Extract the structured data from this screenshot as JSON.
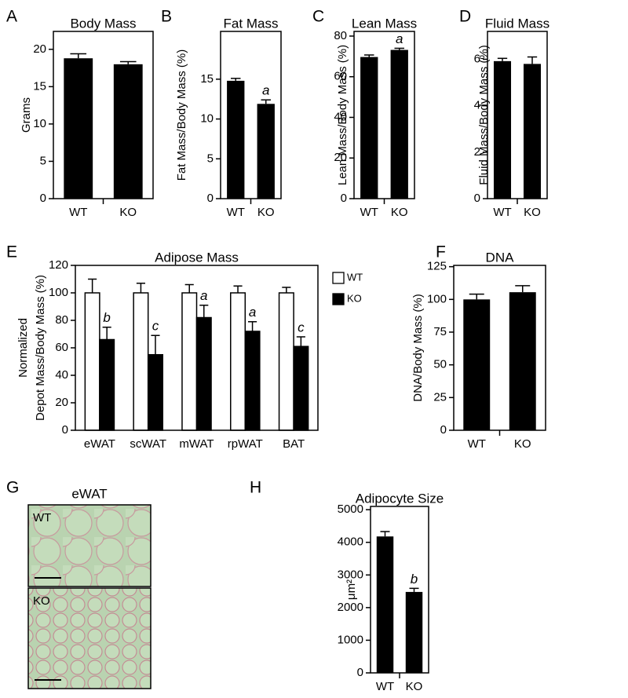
{
  "chart_data": [
    {
      "type": "bar",
      "panel": "A",
      "title": "Body Mass",
      "y_label": "Grams",
      "categories": [
        "WT",
        "KO"
      ],
      "values": [
        18.8,
        18.0
      ],
      "errors": [
        0.6,
        0.35
      ],
      "value_annotations": [
        null,
        null
      ],
      "color": "#000000",
      "ylim": [
        0,
        22.4
      ],
      "yticks": [
        0,
        5,
        10,
        15,
        20
      ]
    },
    {
      "type": "bar",
      "panel": "B",
      "title": "Fat Mass",
      "y_label": "Fat Mass/Body Mass (%)",
      "categories": [
        "WT",
        "KO"
      ],
      "values": [
        14.8,
        11.9
      ],
      "errors": [
        0.3,
        0.5
      ],
      "value_annotations": [
        null,
        "a"
      ],
      "color": "#000000",
      "ylim": [
        0,
        21
      ],
      "yticks": [
        0,
        5,
        10,
        15
      ]
    },
    {
      "type": "bar",
      "panel": "C",
      "title": "Lean Mass",
      "y_label": "Lean Mass/Body Mass (%)",
      "categories": [
        "WT",
        "KO"
      ],
      "values": [
        69.7,
        73.2
      ],
      "errors": [
        1.0,
        0.8
      ],
      "value_annotations": [
        null,
        "a"
      ],
      "color": "#000000",
      "ylim": [
        0,
        82.3
      ],
      "yticks": [
        0,
        20,
        40,
        60,
        80
      ]
    },
    {
      "type": "bar",
      "panel": "D",
      "title": "Fluid Mass",
      "y_label": "Fluid Mass/Body Mass (%)",
      "categories": [
        "WT",
        "KO"
      ],
      "values": [
        5.92,
        5.8
      ],
      "errors": [
        0.12,
        0.3
      ],
      "value_annotations": [
        null,
        null
      ],
      "color": "#000000",
      "ylim": [
        0,
        7.2
      ],
      "yticks": [
        0,
        2,
        4,
        6
      ]
    },
    {
      "type": "grouped-bar",
      "panel": "E",
      "title": "Adipose Mass",
      "y_label": [
        "Normalized",
        "Depot Mass/Body Mass (%)"
      ],
      "categories": [
        "eWAT",
        "scWAT",
        "mWAT",
        "rpWAT",
        "BAT"
      ],
      "series": [
        {
          "name": "WT",
          "color": "#ffffff",
          "values": [
            100,
            100,
            100,
            100,
            100
          ],
          "errors": [
            10,
            7,
            6,
            5,
            4
          ],
          "value_annotations": [
            null,
            null,
            null,
            null,
            null
          ]
        },
        {
          "name": "KO",
          "color": "#000000",
          "values": [
            66,
            55,
            82,
            72,
            61
          ],
          "errors": [
            9,
            14,
            9,
            7,
            7
          ],
          "value_annotations": [
            "b",
            "c",
            "a",
            "a",
            "c"
          ]
        }
      ],
      "ylim": [
        0,
        120
      ],
      "yticks": [
        0,
        20,
        40,
        60,
        80,
        100,
        120
      ],
      "legend": "right"
    },
    {
      "type": "bar",
      "panel": "F",
      "title": "DNA",
      "y_label": "DNA/Body Mass (%)",
      "categories": [
        "WT",
        "KO"
      ],
      "values": [
        100,
        105.5
      ],
      "errors": [
        4,
        5
      ],
      "value_annotations": [
        null,
        null
      ],
      "color": "#000000",
      "ylim": [
        0,
        126
      ],
      "yticks": [
        0,
        25,
        50,
        75,
        100,
        125
      ]
    },
    {
      "type": "bar",
      "panel": "H",
      "title": "Adipocyte Size",
      "y_label": "μm²",
      "categories": [
        "WT",
        "KO"
      ],
      "values": [
        4180,
        2480
      ],
      "errors": [
        150,
        110
      ],
      "value_annotations": [
        null,
        "b"
      ],
      "color": "#000000",
      "ylim": [
        0,
        5100
      ],
      "yticks": [
        0,
        1000,
        2000,
        3000,
        4000,
        5000
      ]
    }
  ],
  "image_panel": {
    "panel": "G",
    "title": "eWAT",
    "images": [
      "WT",
      "KO"
    ]
  }
}
